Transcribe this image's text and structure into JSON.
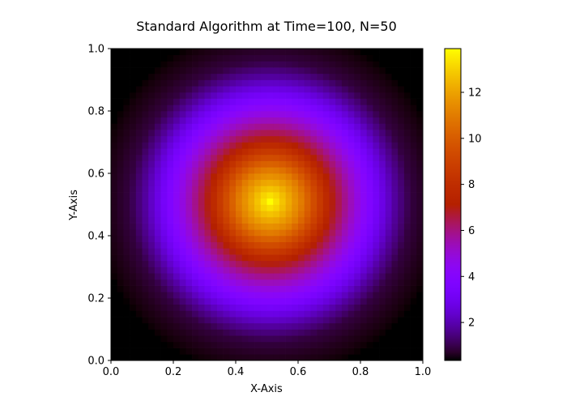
{
  "chart_data": {
    "type": "heatmap",
    "title": "Standard Algorithm at Time=100, N=50",
    "xlabel": "X-Axis",
    "ylabel": "Y-Axis",
    "xlim": [
      0.0,
      1.0
    ],
    "ylim": [
      0.0,
      1.0
    ],
    "grid_size": 50,
    "colormap": "gnuplot",
    "value_range": [
      0.35,
      13.9
    ],
    "x_ticks": [
      "0.0",
      "0.2",
      "0.4",
      "0.6",
      "0.8",
      "1.0"
    ],
    "y_ticks": [
      "0.0",
      "0.2",
      "0.4",
      "0.6",
      "0.8",
      "1.0"
    ],
    "colorbar_ticks": [
      "2",
      "4",
      "6",
      "8",
      "10",
      "12"
    ],
    "field": {
      "shape": "radial",
      "center": [
        0.51,
        0.51
      ],
      "peak": 13.9,
      "radial_profile": [
        {
          "r": 0.0,
          "value": 13.9
        },
        {
          "r": 0.1,
          "value": 11.0
        },
        {
          "r": 0.2,
          "value": 7.0
        },
        {
          "r": 0.25,
          "value": 5.6
        },
        {
          "r": 0.3,
          "value": 4.3
        },
        {
          "r": 0.35,
          "value": 3.0
        },
        {
          "r": 0.4,
          "value": 1.8
        },
        {
          "r": 0.45,
          "value": 0.9
        },
        {
          "r": 0.5,
          "value": 0.6
        },
        {
          "r": 0.55,
          "value": 0.4
        },
        {
          "r": 0.6,
          "value": 0.2
        },
        {
          "r": 0.75,
          "value": 0.0
        }
      ]
    }
  }
}
